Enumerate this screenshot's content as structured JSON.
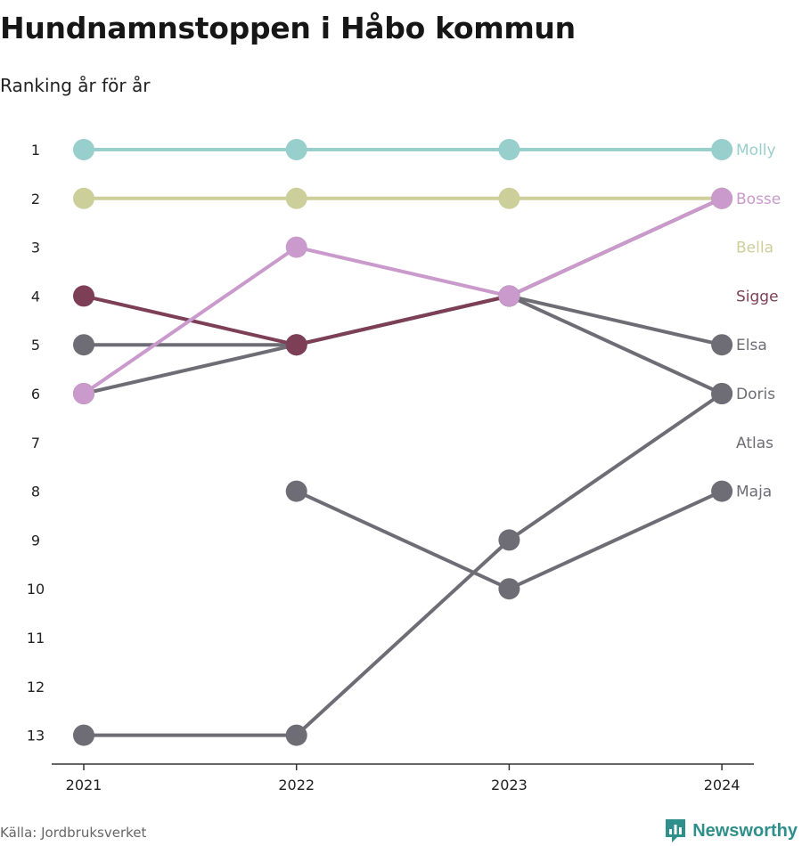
{
  "header": {
    "title": "Hundnamnstoppen i Håbo kommun",
    "subtitle": "Ranking år för år"
  },
  "footer": {
    "source": "Källa: Jordbruksverket",
    "brand": "Newsworthy"
  },
  "colors": {
    "gray": "#6e6d75",
    "axis": "#333333",
    "brand": "#2f8f8a"
  },
  "chart_data": {
    "type": "line",
    "subtype": "bump",
    "x": [
      "2021",
      "2022",
      "2023",
      "2024"
    ],
    "y_ticks": [
      1,
      2,
      3,
      4,
      5,
      6,
      7,
      8,
      9,
      10,
      11,
      12,
      13
    ],
    "ylim": [
      13,
      1
    ],
    "y_reversed": true,
    "grid": false,
    "series": [
      {
        "name": "Maja",
        "values": [
          null,
          8,
          10,
          8
        ],
        "color": "#6e6d75"
      },
      {
        "name": "Atlas",
        "values": [
          13,
          13,
          9,
          6
        ],
        "color": "#6e6d75"
      },
      {
        "name": "Doris",
        "values": [
          6,
          5,
          4,
          6
        ],
        "color": "#6e6d75"
      },
      {
        "name": "Elsa",
        "values": [
          5,
          5,
          4,
          5
        ],
        "color": "#6e6d75"
      },
      {
        "name": "Sigge",
        "values": [
          4,
          5,
          4,
          2
        ],
        "color": "#7d3f55"
      },
      {
        "name": "Bella",
        "values": [
          2,
          2,
          2,
          2
        ],
        "color": "#cdcf9b"
      },
      {
        "name": "Bosse",
        "values": [
          6,
          3,
          4,
          2
        ],
        "color": "#c99acb"
      },
      {
        "name": "Molly",
        "values": [
          1,
          1,
          1,
          1
        ],
        "color": "#98cfcd"
      }
    ],
    "label_order": [
      "Molly",
      "Bosse",
      "Bella",
      "Sigge",
      "Elsa",
      "Doris",
      "Atlas",
      "Maja"
    ]
  }
}
